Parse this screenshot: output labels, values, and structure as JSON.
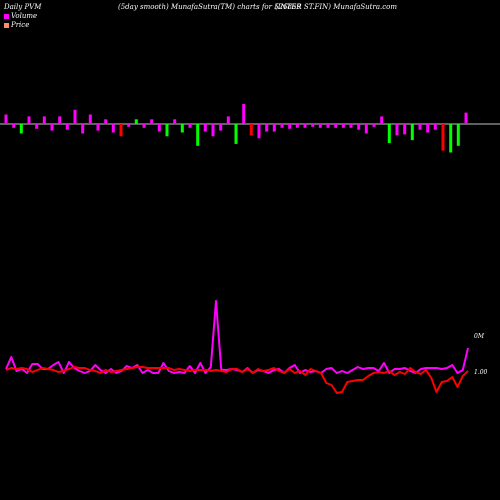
{
  "header": {
    "left": "Daily PVM",
    "middle": "(5day smooth) MunafaSutra(TM) charts for 526859",
    "right": "(INTER ST.FIN) MunafaSutra.com"
  },
  "legend": [
    {
      "label": "Volume",
      "color": "#ff00ff"
    },
    {
      "label": "Price",
      "color": "#ff8c69"
    }
  ],
  "colors": {
    "background": "#000000",
    "up_bar": "#ff00ff",
    "down_bar": "#00ff00",
    "red_bar": "#ff0000",
    "volume_line": "#ff00ff",
    "price_line": "#ff0000",
    "baseline": "#ffffff"
  },
  "chart_data": [
    {
      "type": "bar",
      "title": "",
      "values": [
        10,
        -4,
        -10,
        8,
        -5,
        8,
        -7,
        8,
        -6,
        15,
        -10,
        10,
        -7,
        5,
        -9,
        -13,
        -3,
        5,
        -4,
        5,
        -8,
        -13,
        5,
        -9,
        -4,
        -23,
        -8,
        -13,
        -7,
        8,
        -21,
        21,
        -12,
        -15,
        -8,
        -8,
        -4,
        -5,
        -4,
        -4,
        -3,
        -4,
        -4,
        -4,
        -4,
        -4,
        -6,
        -10,
        -3,
        8,
        -20,
        -12,
        -11,
        -17,
        -6,
        -9,
        -6,
        -28,
        -30,
        -23,
        12
      ],
      "colors": [
        "m",
        "m",
        "g",
        "m",
        "m",
        "m",
        "m",
        "m",
        "m",
        "m",
        "m",
        "m",
        "m",
        "m",
        "m",
        "r",
        "m",
        "g",
        "m",
        "m",
        "m",
        "g",
        "m",
        "g",
        "m",
        "g",
        "m",
        "m",
        "m",
        "m",
        "g",
        "m",
        "r",
        "m",
        "m",
        "m",
        "m",
        "m",
        "m",
        "m",
        "m",
        "m",
        "m",
        "m",
        "m",
        "m",
        "m",
        "m",
        "m",
        "m",
        "g",
        "m",
        "m",
        "g",
        "m",
        "m",
        "m",
        "r",
        "g",
        "g",
        "m"
      ],
      "ylim": [
        -35,
        25
      ]
    },
    {
      "type": "line",
      "title": "",
      "series": [
        {
          "label_end": "0M",
          "values": [
            4,
            16,
            2,
            4,
            0,
            9,
            9,
            4,
            4,
            8,
            11,
            0,
            11,
            5,
            2,
            0,
            2,
            8,
            3,
            0,
            4,
            0,
            2,
            7,
            5,
            8,
            0,
            3,
            0,
            0,
            10,
            2,
            0,
            1,
            0,
            7,
            0,
            10,
            0,
            6,
            72,
            3,
            3,
            4,
            3,
            1,
            5,
            0,
            3,
            2,
            0,
            3,
            4,
            0,
            5,
            8,
            0,
            3,
            1,
            2,
            0,
            4,
            5,
            0,
            2,
            0,
            3,
            6,
            4,
            5,
            5,
            2,
            10,
            0,
            4,
            4,
            5,
            2,
            0,
            4,
            5,
            5,
            5,
            4,
            5,
            8,
            0,
            3,
            25
          ]
        },
        {
          "label_end": "1.00",
          "values": [
            3,
            5,
            4,
            5,
            4,
            1,
            3,
            5,
            4,
            3,
            1,
            2,
            4,
            6,
            5,
            5,
            3,
            2,
            0,
            3,
            1,
            2,
            3,
            4,
            5,
            6,
            6,
            5,
            5,
            5,
            5,
            5,
            3,
            4,
            3,
            2,
            3,
            3,
            3,
            2,
            3,
            2,
            1,
            4,
            4,
            1,
            4,
            0,
            4,
            2,
            3,
            5,
            2,
            0,
            4,
            0,
            2,
            -2,
            4,
            2,
            0,
            -10,
            -12,
            -20,
            -19,
            -9,
            -8,
            -7,
            -7,
            -3,
            0,
            1,
            0,
            2,
            -2,
            1,
            -1,
            5,
            1,
            -1,
            3,
            -5,
            -19,
            -9,
            -8,
            -4,
            -14,
            -3,
            2
          ]
        }
      ]
    }
  ]
}
